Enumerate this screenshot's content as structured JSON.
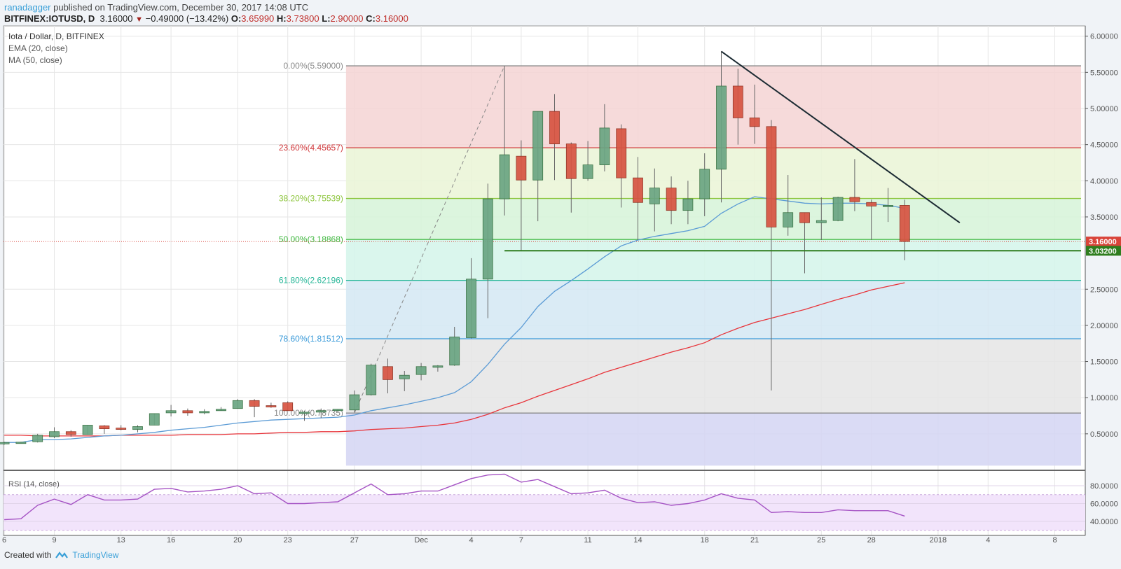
{
  "header": {
    "user": "ranadagger",
    "published": " published on TradingView.com, December 30, 2017 14:08 UTC",
    "symbol": "BITFINEX:IOTUSD, D",
    "last": "3.16000",
    "change": "−0.49000 (−13.42%)",
    "o_label": "O:",
    "o": "3.65990",
    "h_label": "H:",
    "h": "3.73800",
    "l_label": "L:",
    "l": "2.90000",
    "c_label": "C:",
    "c": "3.16000"
  },
  "legend": {
    "title": "Iota / Dollar, D, BITFINEX",
    "ema": "EMA (20, close)",
    "ma": "MA (50, close)",
    "rsi": "RSI (14, close)"
  },
  "footer": {
    "created": "Created with",
    "brand": "TradingView"
  },
  "colors": {
    "up": "#6ba583",
    "down": "#d75442",
    "ema": "#5b9bd5",
    "ma": "#e8353b",
    "rsi": "#a553c4",
    "trendline": "#1c2b33",
    "support": "#2e7d1e"
  },
  "chart_data": {
    "type": "candlestick",
    "ylim": [
      0,
      6.2
    ],
    "y_ticks": [
      "6.00000",
      "5.50000",
      "5.00000",
      "4.50000",
      "4.00000",
      "3.50000",
      "2.50000",
      "2.00000",
      "1.50000",
      "1.00000",
      "0.50000"
    ],
    "x_ticks": [
      {
        "day": 6,
        "label": "6"
      },
      {
        "day": 9,
        "label": "9"
      },
      {
        "day": 13,
        "label": "13"
      },
      {
        "day": 16,
        "label": "16"
      },
      {
        "day": 20,
        "label": "20"
      },
      {
        "day": 23,
        "label": "23"
      },
      {
        "day": 27,
        "label": "27"
      },
      {
        "day": 31,
        "label": "Dec"
      },
      {
        "day": 34,
        "label": "4"
      },
      {
        "day": 37,
        "label": "7"
      },
      {
        "day": 41,
        "label": "11"
      },
      {
        "day": 44,
        "label": "14"
      },
      {
        "day": 48,
        "label": "18"
      },
      {
        "day": 51,
        "label": "21"
      },
      {
        "day": 55,
        "label": "25"
      },
      {
        "day": 58,
        "label": "28"
      },
      {
        "day": 62,
        "label": "2018"
      },
      {
        "day": 65,
        "label": "4"
      },
      {
        "day": 69,
        "label": "8"
      }
    ],
    "first_date": "Nov 6 2017",
    "ohlc": [
      [
        0.36,
        0.39,
        0.35,
        0.38
      ],
      [
        0.38,
        0.39,
        0.37,
        0.385
      ],
      [
        0.39,
        0.5,
        0.38,
        0.48
      ],
      [
        0.46,
        0.59,
        0.44,
        0.53
      ],
      [
        0.53,
        0.55,
        0.46,
        0.49
      ],
      [
        0.49,
        0.62,
        0.49,
        0.62
      ],
      [
        0.61,
        0.62,
        0.5,
        0.57
      ],
      [
        0.58,
        0.62,
        0.55,
        0.57
      ],
      [
        0.56,
        0.62,
        0.52,
        0.6
      ],
      [
        0.62,
        0.78,
        0.62,
        0.78
      ],
      [
        0.79,
        0.9,
        0.74,
        0.82
      ],
      [
        0.82,
        0.85,
        0.75,
        0.79
      ],
      [
        0.79,
        0.84,
        0.77,
        0.81
      ],
      [
        0.82,
        0.87,
        0.82,
        0.84
      ],
      [
        0.85,
        0.98,
        0.85,
        0.96
      ],
      [
        0.96,
        0.98,
        0.73,
        0.88
      ],
      [
        0.89,
        0.93,
        0.86,
        0.88
      ],
      [
        0.93,
        0.95,
        0.82,
        0.82
      ],
      [
        0.79,
        0.82,
        0.68,
        0.8
      ],
      [
        0.8,
        0.85,
        0.72,
        0.82
      ],
      [
        0.82,
        0.84,
        0.8,
        0.84
      ],
      [
        0.83,
        1.1,
        0.8,
        1.04
      ],
      [
        1.04,
        1.47,
        1.03,
        1.45
      ],
      [
        1.43,
        1.54,
        1.06,
        1.25
      ],
      [
        1.26,
        1.37,
        1.09,
        1.31
      ],
      [
        1.32,
        1.48,
        1.24,
        1.43
      ],
      [
        1.42,
        1.45,
        1.36,
        1.44
      ],
      [
        1.45,
        1.98,
        1.44,
        1.84
      ],
      [
        1.83,
        2.93,
        1.82,
        2.64
      ],
      [
        2.64,
        3.96,
        2.1,
        3.75
      ],
      [
        3.75,
        5.59,
        3.52,
        4.36
      ],
      [
        4.34,
        4.56,
        3.04,
        4.01
      ],
      [
        4.01,
        4.96,
        3.44,
        4.96
      ],
      [
        4.96,
        5.2,
        4.01,
        4.51
      ],
      [
        4.51,
        4.53,
        3.56,
        4.03
      ],
      [
        4.03,
        4.55,
        4.0,
        4.22
      ],
      [
        4.22,
        5.06,
        4.13,
        4.73
      ],
      [
        4.72,
        4.78,
        3.63,
        4.04
      ],
      [
        4.04,
        4.33,
        3.18,
        3.7
      ],
      [
        3.68,
        4.17,
        3.3,
        3.9
      ],
      [
        3.9,
        4.06,
        3.4,
        3.59
      ],
      [
        3.59,
        4.0,
        3.4,
        3.75
      ],
      [
        3.75,
        4.38,
        3.51,
        4.16
      ],
      [
        4.16,
        5.79,
        3.7,
        5.31
      ],
      [
        5.31,
        5.55,
        4.5,
        4.87
      ],
      [
        4.87,
        5.33,
        4.51,
        4.75
      ],
      [
        4.75,
        4.84,
        1.1,
        3.36
      ],
      [
        3.36,
        4.08,
        3.24,
        3.56
      ],
      [
        3.56,
        3.56,
        2.72,
        3.42
      ],
      [
        3.42,
        3.77,
        3.18,
        3.45
      ],
      [
        3.45,
        3.78,
        3.44,
        3.77
      ],
      [
        3.77,
        4.3,
        3.58,
        3.71
      ],
      [
        3.7,
        3.74,
        3.18,
        3.65
      ],
      [
        3.65,
        3.9,
        3.43,
        3.66
      ],
      [
        3.6599,
        3.738,
        2.9,
        3.16
      ]
    ],
    "ema20": [
      0.38,
      0.38,
      0.42,
      0.42,
      0.43,
      0.45,
      0.47,
      0.48,
      0.5,
      0.52,
      0.55,
      0.57,
      0.59,
      0.62,
      0.65,
      0.67,
      0.69,
      0.7,
      0.71,
      0.72,
      0.73,
      0.76,
      0.82,
      0.86,
      0.9,
      0.95,
      1.0,
      1.07,
      1.22,
      1.46,
      1.74,
      1.97,
      2.26,
      2.47,
      2.62,
      2.78,
      2.95,
      3.1,
      3.18,
      3.23,
      3.27,
      3.31,
      3.37,
      3.55,
      3.68,
      3.78,
      3.75,
      3.72,
      3.69,
      3.68,
      3.69,
      3.69,
      3.68,
      3.66,
      3.62
    ],
    "ma50": [
      0.48,
      0.48,
      0.47,
      0.47,
      0.47,
      0.47,
      0.47,
      0.48,
      0.48,
      0.48,
      0.48,
      0.49,
      0.49,
      0.49,
      0.5,
      0.5,
      0.51,
      0.52,
      0.52,
      0.53,
      0.53,
      0.54,
      0.56,
      0.57,
      0.58,
      0.6,
      0.62,
      0.65,
      0.7,
      0.77,
      0.86,
      0.93,
      1.02,
      1.1,
      1.18,
      1.26,
      1.35,
      1.42,
      1.49,
      1.56,
      1.63,
      1.69,
      1.76,
      1.87,
      1.96,
      2.04,
      2.1,
      2.16,
      2.22,
      2.29,
      2.36,
      2.42,
      2.49,
      2.54,
      2.59
    ],
    "fib": [
      {
        "label": "0.00%(5.59000)",
        "value": 5.59,
        "color": "#8a8a8a",
        "fill": "#f4d4d4"
      },
      {
        "label": "23.60%(4.45657)",
        "value": 4.45657,
        "color": "#d0383b",
        "fill": "#eaf5d6"
      },
      {
        "label": "38.20%(3.75539)",
        "value": 3.75539,
        "color": "#8cc53b",
        "fill": "#d6f3d8"
      },
      {
        "label": "50.00%(3.18868)",
        "value": 3.18868,
        "color": "#3bb63b",
        "fill": "#d4f4ea"
      },
      {
        "label": "61.80%(2.62196)",
        "value": 2.62196,
        "color": "#2bb89a",
        "fill": "#d3e8f3"
      },
      {
        "label": "78.60%(1.81512)",
        "value": 1.81512,
        "color": "#3a9ad9",
        "fill": "#e5e5e5"
      },
      {
        "label": "100.00%(0.78735)",
        "value": 0.78735,
        "color": "#8a8a8a",
        "fill": "#d4d5f3"
      }
    ],
    "trendline": {
      "from": {
        "day": 49,
        "price": 5.79
      },
      "to": {
        "day": 63.3,
        "price": 3.42
      }
    },
    "support": {
      "from_day": 36,
      "price": 3.032
    },
    "price_labels": [
      {
        "text": "3.16000",
        "value": 3.16,
        "color": "#d9443a"
      },
      {
        "text": "3.03200",
        "value": 3.032,
        "color": "#2e7d1e"
      }
    ],
    "rsi": {
      "ylim": [
        25,
        100
      ],
      "ticks": [
        "80.0000",
        "60.0000",
        "40.0000"
      ],
      "bands": [
        30,
        70
      ],
      "values": [
        42,
        43,
        58,
        65,
        59,
        70,
        64,
        64,
        65,
        76,
        77,
        73,
        74,
        76,
        80,
        71,
        72,
        60,
        60,
        61,
        62,
        72,
        82,
        70,
        71,
        74,
        74,
        81,
        88,
        92,
        93,
        84,
        87,
        79,
        71,
        72,
        75,
        66,
        61,
        62,
        58,
        60,
        64,
        71,
        66,
        64,
        50,
        51,
        50,
        50,
        53,
        52,
        52,
        52,
        46
      ]
    }
  }
}
